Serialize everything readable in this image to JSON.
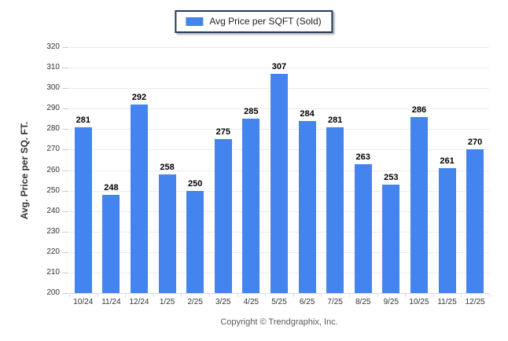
{
  "legend": {
    "label": "Avg Price per SQFT (Sold)",
    "swatch_color": "#4384ee"
  },
  "footer": {
    "copyright": "Copyright © Trendgraphix, Inc."
  },
  "colors": {
    "bar-color": "#4384ee",
    "legend-border": "#1f3b5c",
    "grid-color": "#ececec",
    "axis-color": "#dcdcdc",
    "tick-color": "#cccccc",
    "label-color": "#333333",
    "value-color": "#000000",
    "footer-color": "#595959",
    "bg": "#ffffff"
  },
  "chart_data": {
    "type": "bar",
    "title": "",
    "series_name": "Avg Price per SQFT (Sold)",
    "categories": [
      "10/24",
      "11/24",
      "12/24",
      "1/25",
      "2/25",
      "3/25",
      "4/25",
      "5/25",
      "6/25",
      "7/25",
      "8/25",
      "9/25",
      "10/25",
      "11/25",
      "12/25"
    ],
    "values": [
      281,
      248,
      292,
      258,
      250,
      275,
      285,
      307,
      284,
      281,
      263,
      253,
      286,
      261,
      270
    ],
    "xlabel": "",
    "ylabel": "Avg. Price per SQ. FT.",
    "ylim": [
      200,
      320
    ],
    "ytick_step": 10,
    "grid": "horizontal",
    "legend_position": "top-center",
    "bar_color": "#4384ee",
    "data_labels": true
  }
}
